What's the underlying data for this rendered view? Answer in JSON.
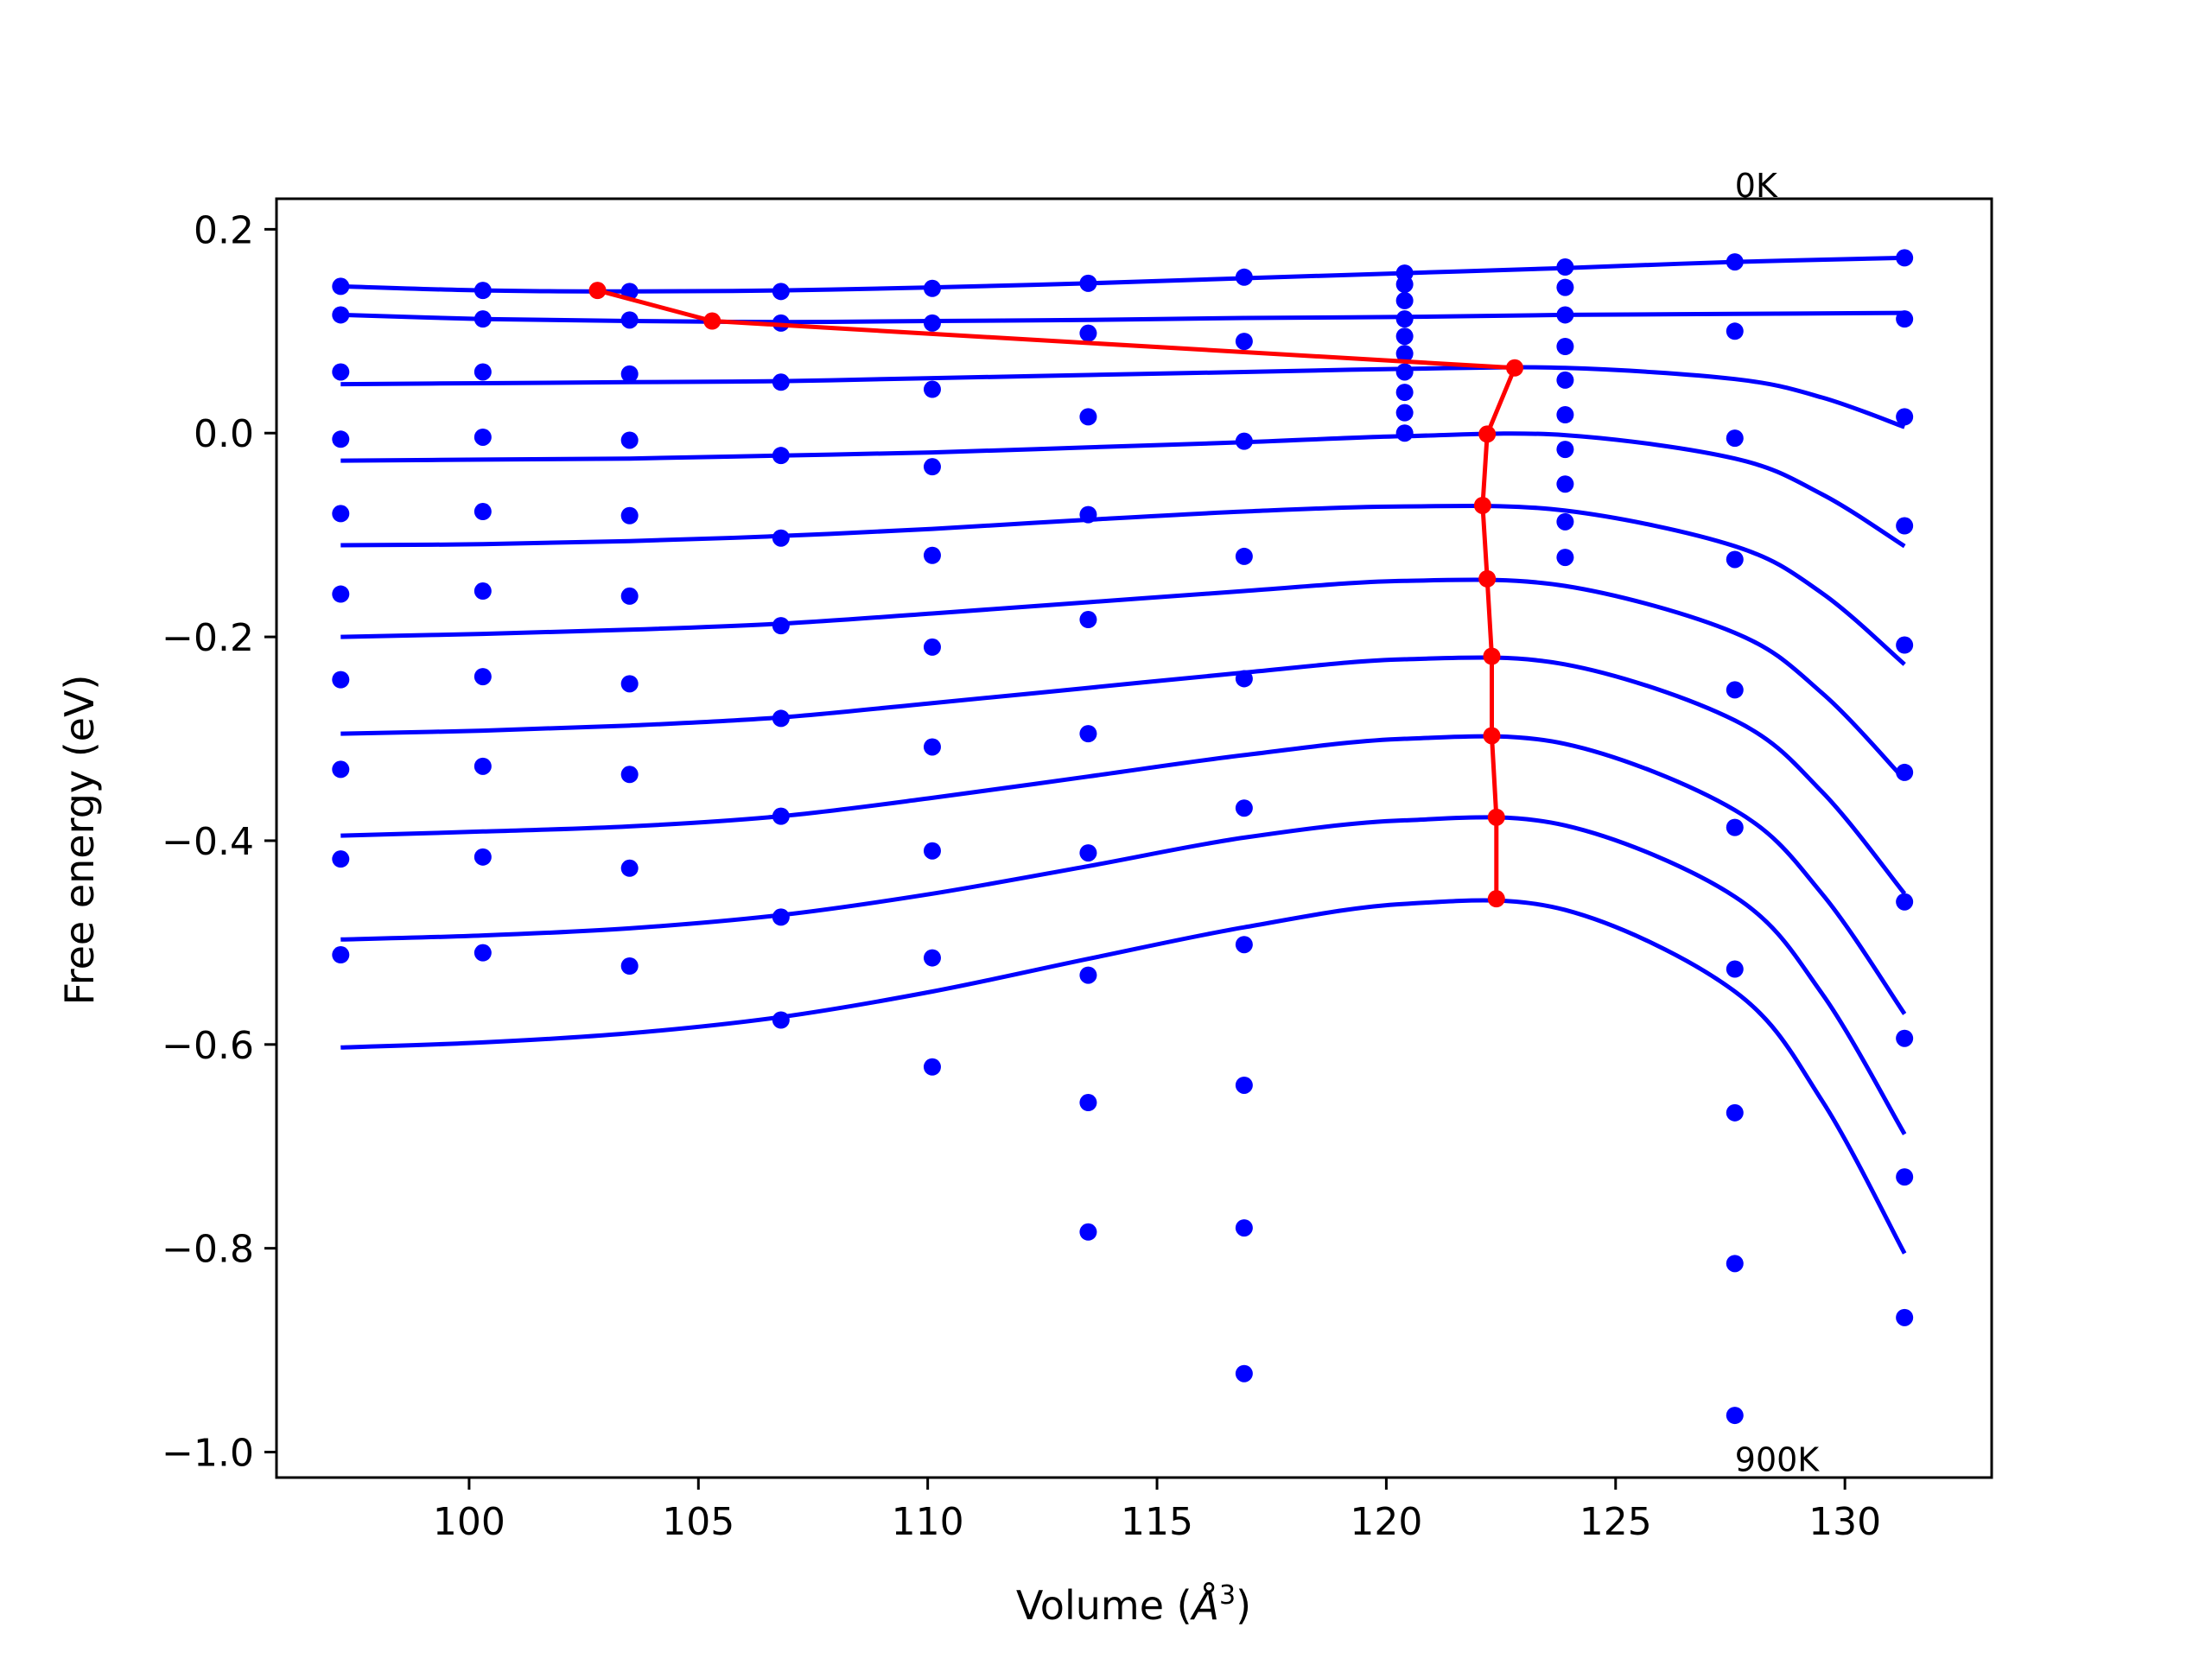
{
  "chart_data": {
    "type": "scatter",
    "title": "",
    "xlabel": "Volume",
    "xlabel_unit_base": "Å",
    "xlabel_unit_exp": "3",
    "ylabel": "Free energy (eV)",
    "xlim": [
      95.8,
      133.2
    ],
    "ylim": [
      -1.025,
      0.23
    ],
    "xticks": [
      100,
      105,
      110,
      115,
      120,
      125,
      130
    ],
    "xtick_labels": [
      "100",
      "105",
      "110",
      "115",
      "120",
      "125",
      "130"
    ],
    "yticks": [
      0.2,
      0.0,
      -0.2,
      -0.4,
      -0.6,
      -0.8,
      -1.0
    ],
    "ytick_labels": [
      "0.2",
      "0.0",
      "−0.2",
      "−0.4",
      "−0.6",
      "−0.8",
      "−1.0"
    ],
    "grid": false,
    "annotations": [
      {
        "text": "0K",
        "x": 127.6,
        "y": 0.23
      },
      {
        "text": "900K",
        "x": 127.6,
        "y": -1.01
      }
    ],
    "colors": {
      "points": "#0000ff",
      "fits": "#0000ff",
      "minimum_path": "#ff0000"
    },
    "volumes": [
      97.2,
      100.3,
      103.5,
      106.8,
      110.1,
      113.5,
      116.9,
      120.4,
      123.9,
      127.6,
      131.3
    ],
    "points": [
      {
        "x": 97.2,
        "y": [
          0.144,
          0.116,
          0.06,
          -0.006,
          -0.079,
          -0.158,
          -0.242,
          -0.33,
          -0.418,
          -0.512
        ]
      },
      {
        "x": 100.3,
        "y": [
          0.14,
          0.112,
          0.06,
          -0.004,
          -0.077,
          -0.155,
          -0.239,
          -0.327,
          -0.416,
          -0.51
        ]
      },
      {
        "x": 103.5,
        "y": [
          0.139,
          0.111,
          0.058,
          -0.007,
          -0.081,
          -0.16,
          -0.246,
          -0.335,
          -0.427,
          -0.523
        ]
      },
      {
        "x": 106.8,
        "y": [
          0.139,
          0.108,
          0.05,
          -0.022,
          -0.103,
          -0.189,
          -0.28,
          -0.376,
          -0.475,
          -0.576
        ]
      },
      {
        "x": 110.1,
        "y": [
          0.142,
          0.108,
          0.043,
          -0.033,
          -0.12,
          -0.21,
          -0.308,
          -0.41,
          -0.515,
          -0.622
        ]
      },
      {
        "x": 113.5,
        "y": [
          0.147,
          0.098,
          0.016,
          -0.08,
          -0.183,
          -0.295,
          -0.412,
          -0.532,
          -0.657,
          -0.784
        ]
      },
      {
        "x": 116.9,
        "y": [
          0.153,
          0.09,
          -0.008,
          -0.121,
          -0.241,
          -0.368,
          -0.502,
          -0.64,
          -0.78,
          -0.923
        ]
      },
      {
        "x": 120.4,
        "y": [
          0.157,
          0.146,
          0.13,
          0.112,
          0.095,
          0.078,
          0.06,
          0.04,
          0.02,
          0.0
        ]
      },
      {
        "x": 123.9,
        "y": [
          0.163,
          0.143,
          0.116,
          0.085,
          0.052,
          0.018,
          -0.016,
          -0.05,
          -0.087,
          -0.122
        ]
      },
      {
        "x": 127.6,
        "y": [
          0.168,
          0.1,
          -0.005,
          -0.124,
          -0.252,
          -0.387,
          -0.526,
          -0.667,
          -0.815,
          -0.964
        ]
      },
      {
        "x": 131.3,
        "y": [
          0.172,
          0.112,
          0.016,
          -0.091,
          -0.208,
          -0.333,
          -0.46,
          -0.594,
          -0.73,
          -0.868
        ]
      }
    ],
    "fit_curves": [
      {
        "x": [
          97.2,
          100.3,
          103.5,
          106.8,
          110.1,
          113.5,
          116.9,
          120.4,
          123.9,
          127.6,
          131.3
        ],
        "y": [
          0.144,
          0.14,
          0.139,
          0.14,
          0.143,
          0.147,
          0.152,
          0.157,
          0.162,
          0.168,
          0.172
        ]
      },
      {
        "x": [
          97.2,
          100.3,
          103.5,
          106.8,
          110.1,
          113.5,
          116.9,
          120.4,
          123.9,
          127.6,
          131.3
        ],
        "y": [
          0.116,
          0.112,
          0.11,
          0.109,
          0.11,
          0.111,
          0.113,
          0.114,
          0.116,
          0.117,
          0.118
        ]
      },
      {
        "x": [
          97.2,
          100.3,
          103.5,
          106.8,
          110.1,
          113.5,
          116.9,
          120.4,
          123.9,
          127.6,
          129.5,
          131.3
        ],
        "y": [
          0.048,
          0.049,
          0.05,
          0.051,
          0.054,
          0.057,
          0.06,
          0.063,
          0.064,
          0.053,
          0.035,
          0.006
        ]
      },
      {
        "x": [
          97.2,
          100.3,
          103.5,
          106.8,
          110.1,
          113.5,
          116.9,
          120.4,
          123.9,
          127.6,
          129.5,
          131.3
        ],
        "y": [
          -0.027,
          -0.026,
          -0.025,
          -0.022,
          -0.019,
          -0.014,
          -0.009,
          -0.003,
          -0.002,
          -0.025,
          -0.06,
          -0.111
        ]
      },
      {
        "x": [
          97.2,
          100.3,
          103.5,
          106.8,
          110.1,
          113.5,
          116.9,
          120.4,
          123.9,
          127.6,
          129.5,
          131.3
        ],
        "y": [
          -0.11,
          -0.109,
          -0.106,
          -0.101,
          -0.094,
          -0.085,
          -0.077,
          -0.072,
          -0.076,
          -0.111,
          -0.157,
          -0.227
        ]
      },
      {
        "x": [
          97.2,
          100.3,
          103.5,
          106.8,
          110.1,
          113.5,
          116.9,
          120.4,
          123.9,
          127.6,
          129.5,
          131.3
        ],
        "y": [
          -0.2,
          -0.197,
          -0.193,
          -0.187,
          -0.177,
          -0.166,
          -0.155,
          -0.145,
          -0.15,
          -0.196,
          -0.255,
          -0.34
        ]
      },
      {
        "x": [
          97.2,
          100.3,
          103.5,
          106.8,
          110.1,
          113.5,
          116.9,
          120.4,
          123.9,
          127.6,
          129.5,
          131.3
        ],
        "y": [
          -0.295,
          -0.292,
          -0.287,
          -0.279,
          -0.265,
          -0.25,
          -0.235,
          -0.222,
          -0.227,
          -0.282,
          -0.352,
          -0.452
        ]
      },
      {
        "x": [
          97.2,
          100.3,
          103.5,
          106.8,
          110.1,
          113.5,
          116.9,
          120.4,
          123.9,
          127.6,
          129.5,
          131.3
        ],
        "y": [
          -0.395,
          -0.391,
          -0.386,
          -0.376,
          -0.358,
          -0.337,
          -0.316,
          -0.3,
          -0.305,
          -0.37,
          -0.452,
          -0.57
        ]
      },
      {
        "x": [
          97.2,
          100.3,
          103.5,
          106.8,
          110.1,
          113.5,
          116.9,
          120.4,
          123.9,
          127.6,
          129.5,
          131.3
        ],
        "y": [
          -0.497,
          -0.493,
          -0.486,
          -0.473,
          -0.452,
          -0.425,
          -0.397,
          -0.38,
          -0.385,
          -0.455,
          -0.55,
          -0.688
        ]
      },
      {
        "x": [
          97.2,
          100.3,
          103.5,
          106.8,
          110.1,
          113.5,
          116.9,
          120.4,
          123.9,
          127.6,
          129.5,
          131.3
        ],
        "y": [
          -0.603,
          -0.598,
          -0.589,
          -0.573,
          -0.548,
          -0.516,
          -0.485,
          -0.462,
          -0.468,
          -0.548,
          -0.655,
          -0.805
        ]
      }
    ],
    "minimum_path": {
      "x": [
        102.8,
        105.3,
        122.8,
        122.2,
        122.1,
        122.2,
        122.3,
        122.3,
        122.4,
        122.4
      ],
      "y": [
        0.14,
        0.11,
        0.064,
        -0.001,
        -0.071,
        -0.143,
        -0.219,
        -0.297,
        -0.377,
        -0.457
      ]
    }
  }
}
